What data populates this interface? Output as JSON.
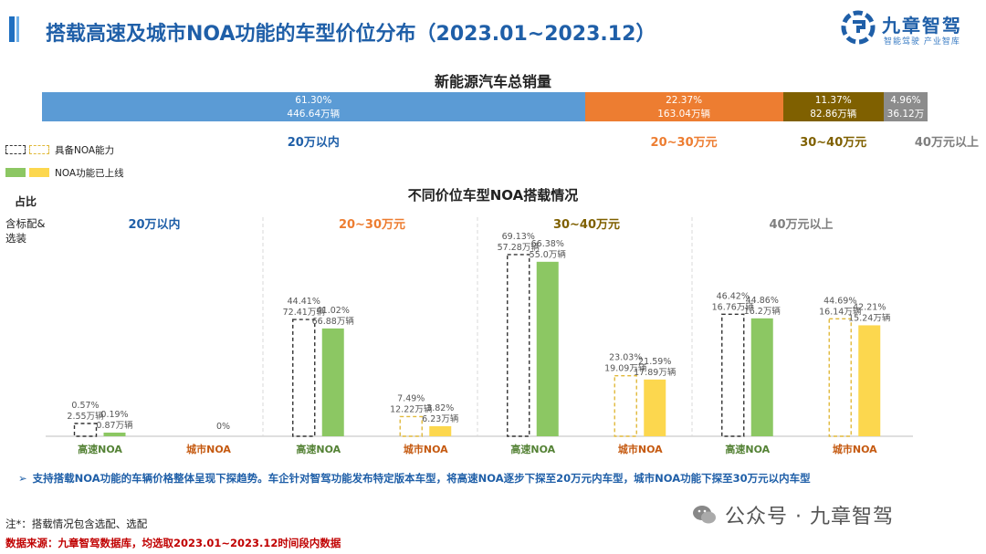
{
  "page": {
    "title": "搭载高速及城市NOA功能的车型价位分布（2023.01~2023.12）",
    "logo": {
      "name": "九章智驾",
      "slogan": "智能驾驶 产业智库",
      "icon": "gear-logo-icon"
    },
    "colors": {
      "title": "#1f5fa8",
      "seg1": "#5b9bd5",
      "seg2": "#ed7d31",
      "seg3": "#7f6000",
      "seg4": "#8c8c8c",
      "green": "#8cc763",
      "yellow": "#fcd74e",
      "accent_red": "#c00000"
    }
  },
  "legend": [
    {
      "label": "具备NOA能力",
      "style": "dashed"
    },
    {
      "label": "NOA功能已上线",
      "style": "filled"
    }
  ],
  "y_label": {
    "title": "占比",
    "sub": "含标配&选装"
  },
  "note": "支持搭载NOA功能的车辆价格整体呈现下探趋势。车企针对智驾功能发布特定版本车型，将高速NOA逐步下探至20万元内车型，城市NOA功能下探至30万元以内车型",
  "footnote": "注*：搭载情况包含选配、选配",
  "source": "数据来源：九章智驾数据库，均选取2023.01~2023.12时间段内数据",
  "wechat": {
    "text": "公众号 · 九章智驾",
    "icon": "wechat-icon"
  },
  "chart_data": [
    {
      "type": "bar",
      "stacked": true,
      "title": "新能源汽车总销量",
      "categories": [
        "20万以内",
        "20~30万元",
        "30~40万元",
        "40万元以上"
      ],
      "percent_labels": [
        "61.30%",
        "22.37%",
        "11.37%",
        "4.96%"
      ],
      "value_labels": [
        "446.64万辆",
        "163.04万辆",
        "82.86万辆",
        "36.12万辆"
      ],
      "values": [
        61.3,
        22.37,
        11.37,
        4.96
      ],
      "colors": [
        "#5b9bd5",
        "#ed7d31",
        "#7f6000",
        "#8c8c8c"
      ],
      "label_colors": [
        "#1f5fa8",
        "#ed7d31",
        "#7f6000",
        "#7f7f7f"
      ]
    },
    {
      "type": "bar",
      "title": "不同价位车型NOA搭载情况",
      "groups": [
        {
          "name": "20万以内",
          "color": "#1f5fa8",
          "bars": [
            {
              "cat": "高速NOA",
              "capable": 0.57,
              "capable_label": "0.57%",
              "capable_units": "2.55万辆",
              "online": 0.19,
              "online_label": "0.19%",
              "online_units": "0.87万辆"
            },
            {
              "cat": "城市NOA",
              "capable": 0,
              "capable_label": "",
              "capable_units": "",
              "online": 0,
              "online_label": "0%",
              "online_units": ""
            }
          ]
        },
        {
          "name": "20~30万元",
          "color": "#ed7d31",
          "bars": [
            {
              "cat": "高速NOA",
              "capable": 44.41,
              "capable_label": "44.41%",
              "capable_units": "72.41万辆",
              "online": 41.02,
              "online_label": "41.02%",
              "online_units": "66.88万辆"
            },
            {
              "cat": "城市NOA",
              "capable": 7.49,
              "capable_label": "7.49%",
              "capable_units": "12.22万辆",
              "online": 3.82,
              "online_label": "3.82%",
              "online_units": "6.23万辆"
            }
          ]
        },
        {
          "name": "30~40万元",
          "color": "#7f6000",
          "bars": [
            {
              "cat": "高速NOA",
              "capable": 69.13,
              "capable_label": "69.13%",
              "capable_units": "57.28万辆",
              "online": 66.38,
              "online_label": "66.38%",
              "online_units": "55.0万辆"
            },
            {
              "cat": "城市NOA",
              "capable": 23.03,
              "capable_label": "23.03%",
              "capable_units": "19.09万辆",
              "online": 21.59,
              "online_label": "21.59%",
              "online_units": "17.89万辆"
            }
          ]
        },
        {
          "name": "40万元以上",
          "color": "#7f7f7f",
          "bars": [
            {
              "cat": "高速NOA",
              "capable": 46.42,
              "capable_label": "46.42%",
              "capable_units": "16.76万辆",
              "online": 44.86,
              "online_label": "44.86%",
              "online_units": "16.2万辆"
            },
            {
              "cat": "城市NOA",
              "capable": 44.69,
              "capable_label": "44.69%",
              "capable_units": "16.14万辆",
              "online": 42.21,
              "online_label": "42.21%",
              "online_units": "15.24万辆"
            }
          ]
        }
      ],
      "series": [
        {
          "name": "具备NOA能力"
        },
        {
          "name": "NOA功能已上线"
        }
      ],
      "cat_colors": {
        "高速NOA": "#548235",
        "城市NOA": "#c55a11"
      },
      "ylim": [
        0,
        75
      ]
    }
  ]
}
